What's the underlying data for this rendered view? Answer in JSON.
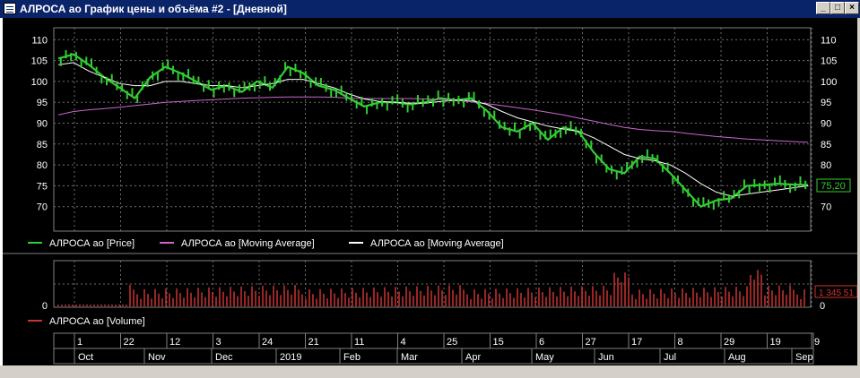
{
  "window": {
    "title": "АЛРОСА ао График цены и объёма #2 - [Дневной]",
    "minimize_glyph": "_",
    "maximize_glyph": "□",
    "close_glyph": "×"
  },
  "price_panel": {
    "y_ticks": [
      "110",
      "105",
      "100",
      "95",
      "90",
      "85",
      "80",
      "75",
      "70"
    ],
    "last_price": "75,20",
    "legend": [
      {
        "label": "АЛРОСА ао [Price]",
        "color": "#33cc33"
      },
      {
        "label": "АЛРОСА ао [Moving Average]",
        "color": "#cc66cc"
      },
      {
        "label": "АЛРОСА ао [Moving Average]",
        "color": "#ffffff"
      }
    ]
  },
  "volume_panel": {
    "y_ticks": [
      "0"
    ],
    "last_volume": "1 345 51",
    "legend": [
      {
        "label": "АЛРОСА ао [Volume]",
        "color": "#cc3333"
      }
    ]
  },
  "date_axis": {
    "days": [
      "1",
      "22",
      "12",
      "3",
      "24",
      "21",
      "11",
      "4",
      "25",
      "15",
      "6",
      "27",
      "17",
      "8",
      "29",
      "19",
      "9"
    ],
    "months": [
      "Oct",
      "Nov",
      "Dec",
      "2019",
      "Feb",
      "Mar",
      "Apr",
      "May",
      "Jun",
      "Jul",
      "Aug",
      "Sep"
    ]
  },
  "chart_data": {
    "type": "line",
    "x": [
      0,
      5,
      10,
      15,
      20,
      25,
      30,
      35,
      40,
      45,
      50,
      55,
      60,
      65,
      70,
      75,
      80,
      85,
      90,
      95,
      100,
      105,
      110,
      115,
      120,
      125,
      130,
      135,
      140,
      145,
      150,
      155,
      160,
      165,
      170,
      175,
      180,
      185,
      190,
      195,
      200,
      205,
      210,
      215,
      220,
      225,
      230,
      235,
      240,
      245
    ],
    "series": [
      {
        "name": "АЛРОСА ао [Price]",
        "values": [
          105.5,
          106.5,
          104,
          101,
          98.5,
          96,
          101,
          103.5,
          102,
          100,
          98,
          99,
          97.5,
          100,
          98.5,
          103.5,
          102,
          99,
          98,
          96,
          94,
          95,
          95,
          94.5,
          95,
          96,
          95.5,
          96,
          93,
          89,
          88,
          90,
          86,
          89,
          88,
          83,
          79,
          78,
          82,
          81.5,
          78,
          74,
          70,
          71.5,
          72,
          75,
          75.2,
          75.5,
          75.3,
          75.2
        ]
      },
      {
        "name": "АЛРОСА ао [Moving Average]",
        "values": [
          92,
          92.8,
          93.2,
          93.5,
          93.8,
          94.2,
          94.6,
          95,
          95.2,
          95.4,
          95.6,
          95.8,
          96,
          96.1,
          96.2,
          96.3,
          96.3,
          96.3,
          96.2,
          96,
          95.9,
          95.9,
          95.9,
          95.9,
          95.8,
          95.7,
          95.5,
          95.1,
          94.7,
          94.2,
          93.7,
          93.2,
          92.6,
          92,
          91.2,
          90.5,
          89.7,
          89,
          88.5,
          88.2,
          88,
          87.6,
          87.2,
          86.8,
          86.5,
          86.2,
          86,
          85.8,
          85.6,
          85.4
        ]
      },
      {
        "name": "АЛРОСА ао [Moving Average]",
        "values": [
          104,
          104.5,
          102.5,
          101,
          99.5,
          99,
          99,
          100,
          100,
          99.5,
          99,
          99,
          98.5,
          99,
          99.5,
          100.5,
          100.5,
          99.5,
          98.5,
          97,
          95.8,
          95.2,
          95,
          94.8,
          94.8,
          95.2,
          95.5,
          95.4,
          94.5,
          92.8,
          91.3,
          90.3,
          89.3,
          88.6,
          88,
          86.5,
          84.5,
          82.5,
          81.5,
          81,
          80,
          78,
          75.5,
          73.5,
          72.5,
          73,
          73.5,
          74,
          74.5,
          75
        ]
      }
    ],
    "volume_scale_ticks": [
      "0"
    ],
    "ylim": [
      65,
      112
    ]
  }
}
